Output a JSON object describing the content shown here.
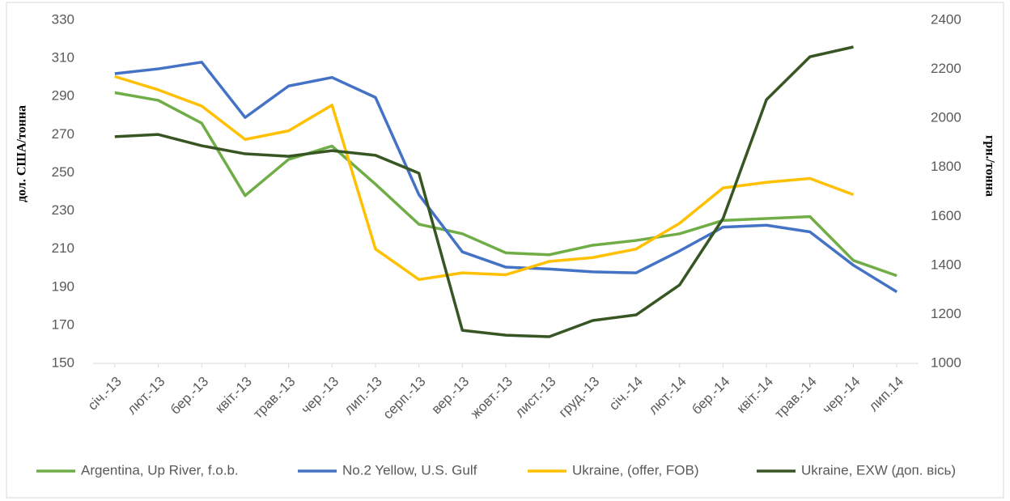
{
  "chart_data": {
    "type": "line",
    "categories": [
      "січ.-13",
      "лют.-13",
      "бер.-13",
      "квіт.-13",
      "трав.-13",
      "чер.-13",
      "лип.-13",
      "серп.-13",
      "вер.-13",
      "жовт.-13",
      "лист.-13",
      "груд.-13",
      "січ.-14",
      "лют.-14",
      "бер.-14",
      "квіт.-14",
      "трав.-14",
      "чер.-14",
      "лип.14"
    ],
    "series": [
      {
        "name": "Argentina, Up River, f.o.b.",
        "color": "#70ad47",
        "values": [
          292,
          288,
          276,
          238,
          257,
          264,
          244,
          223,
          218,
          208,
          207,
          212,
          214.5,
          218,
          225,
          226,
          227,
          204,
          196
        ]
      },
      {
        "name": "No.2 Yellow, U.S. Gulf",
        "color": "#4472c4",
        "values": [
          302,
          304.5,
          308,
          279,
          295.5,
          300,
          289.5,
          238.5,
          208.5,
          200.5,
          199.5,
          198,
          197.5,
          209,
          221.5,
          222.5,
          219,
          201.5,
          187.5
        ]
      },
      {
        "name": "Ukraine, (offer, FOB)",
        "color": "#ffc000",
        "values": [
          300.5,
          293.5,
          285,
          267.5,
          272,
          285.5,
          210,
          194,
          197.5,
          196.5,
          203.5,
          205.5,
          210,
          223.5,
          242,
          245,
          247,
          238.5,
          null
        ]
      },
      {
        "name": "Ukraine, EXW (доп. вісь)",
        "color": "#375623",
        "axis": "y2",
        "values": [
          1925,
          1934,
          1888,
          1855,
          1845,
          1868,
          1849,
          1776,
          1135,
          1115,
          1109,
          1175,
          1198,
          1320,
          1591,
          2076,
          2251,
          2291,
          null
        ]
      }
    ],
    "ylabel": "дол. США/тонна",
    "y2label": "грн./тонна",
    "ylim": [
      150,
      330
    ],
    "yticks": [
      150,
      170,
      190,
      210,
      230,
      250,
      270,
      290,
      310,
      330
    ],
    "y2lim": [
      1000,
      2400
    ],
    "y2ticks": [
      1000,
      1200,
      1400,
      1600,
      1800,
      2000,
      2200,
      2400
    ],
    "legend": "bottom",
    "grid": false
  }
}
